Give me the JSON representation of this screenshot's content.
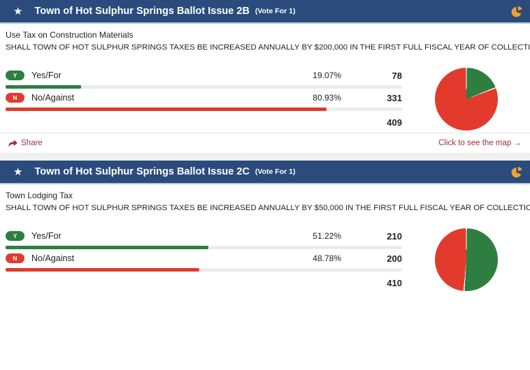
{
  "colors": {
    "header_bg": "#2a4b7c",
    "header_border": "#b3c3da",
    "yes_green": "#2e7d41",
    "no_red": "#e23b2e",
    "link_maroon": "#9d3238",
    "pie_icon_orange": "#f0a22e",
    "bar_track": "#ececec"
  },
  "contests": [
    {
      "title": "Town of Hot Sulphur Springs Ballot Issue 2B",
      "vote_for": "(Vote For 1)",
      "subtitle": "Use Tax on Construction Materials",
      "question": "SHALL TOWN OF HOT SULPHUR SPRINGS TAXES BE INCREASED ANNUALLY BY $200,000 IN THE FIRST FULL FISCAL YEAR OF COLLECTION COMMENCING JA...",
      "options": [
        {
          "key": "Y",
          "label": "Yes/For",
          "pct": "19.07%",
          "pct_value": 19.07,
          "votes": "78",
          "color": "#2e7d41"
        },
        {
          "key": "N",
          "label": "No/Against",
          "pct": "80.93%",
          "pct_value": 80.93,
          "votes": "331",
          "color": "#e23b2e"
        }
      ],
      "total": "409",
      "footer": {
        "share_label": "Share",
        "map_label": "Click to see the map →"
      }
    },
    {
      "title": "Town of Hot Sulphur Springs Ballot Issue 2C",
      "vote_for": "(Vote For 1)",
      "subtitle": "Town Lodging Tax",
      "question": "SHALL TOWN OF HOT SULPHUR SPRINGS TAXES BE INCREASED ANNUALLY BY $50,000 IN THE FIRST FULL FISCAL YEAR OF COLLECTION COMMENCING JAN...",
      "options": [
        {
          "key": "Y",
          "label": "Yes/For",
          "pct": "51.22%",
          "pct_value": 51.22,
          "votes": "210",
          "color": "#2e7d41"
        },
        {
          "key": "N",
          "label": "No/Against",
          "pct": "48.78%",
          "pct_value": 48.78,
          "votes": "200",
          "color": "#e23b2e"
        }
      ],
      "total": "410",
      "footer": {
        "share_label": "Share",
        "map_label": "Click to see the map →"
      }
    }
  ],
  "chart_data": [
    {
      "type": "pie",
      "title": "Town of Hot Sulphur Springs Ballot Issue 2B",
      "labels": [
        "Yes/For",
        "No/Against"
      ],
      "values": [
        19.07,
        80.93
      ],
      "counts": [
        78,
        331
      ],
      "total": 409,
      "colors": [
        "#2e7d41",
        "#e23b2e"
      ],
      "start_angle": "top",
      "direction": "clockwise"
    },
    {
      "type": "pie",
      "title": "Town of Hot Sulphur Springs Ballot Issue 2C",
      "labels": [
        "Yes/For",
        "No/Against"
      ],
      "values": [
        51.22,
        48.78
      ],
      "counts": [
        210,
        200
      ],
      "total": 410,
      "colors": [
        "#2e7d41",
        "#e23b2e"
      ],
      "start_angle": "top",
      "direction": "clockwise"
    }
  ]
}
